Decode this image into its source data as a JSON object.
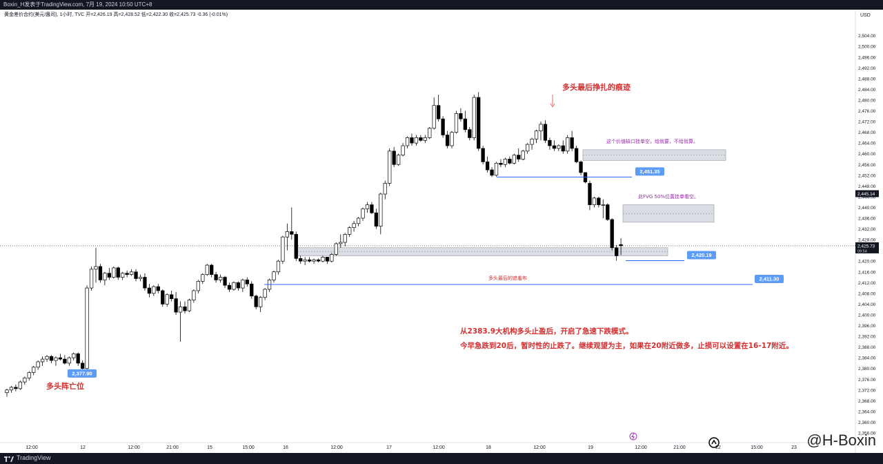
{
  "header": {
    "publish_line": "Boxin_H发表于TradingView.com,  7月 19, 2024 10:50 UTC+8",
    "symbol_line": "黄金差价合约(美元/盎司), 1小时, TVC  开=2,426.19  高=2,428.52  低=2,422.30  收=2,425.73  -0.36 (-0.01%)"
  },
  "footer": {
    "brand": "TradingView"
  },
  "watermark": "@H-Boxin",
  "colors": {
    "up": "#ffffff",
    "down": "#000000",
    "label_blue": "#5b9cf6",
    "zone_fill": "#d1d4dc",
    "annotation_red": "#d32f2f",
    "annotation_purple": "#9c27b0",
    "line_blue": "#2962ff"
  },
  "chart_data": {
    "type": "candlestick",
    "currency": "USD",
    "ylim": [
      2356.0,
      2507.0
    ],
    "y_ticks": [
      "2,356.00",
      "2,360.00",
      "2,364.00",
      "2,368.00",
      "2,372.00",
      "2,376.00",
      "2,380.00",
      "2,384.00",
      "2,388.00",
      "2,392.00",
      "2,396.00",
      "2,400.00",
      "2,404.00",
      "2,408.00",
      "2,412.00",
      "2,416.00",
      "2,420.00",
      "2,424.00",
      "2,428.00",
      "2,432.00",
      "2,436.00",
      "2,440.00",
      "2,444.00",
      "2,448.00",
      "2,452.00",
      "2,456.00",
      "2,460.00",
      "2,464.00",
      "2,468.00",
      "2,472.00",
      "2,476.00",
      "2,480.00",
      "2,484.00",
      "2,488.00",
      "2,492.00",
      "2,496.00",
      "2,500.00",
      "2,504.00"
    ],
    "x_ticks": [
      "12:00",
      "12",
      "12:00",
      "21:00",
      "15",
      "15:00",
      "16",
      "12:00",
      "17",
      "12:00",
      "18",
      "12:00",
      "19",
      "12:00",
      "21:00",
      "22",
      "15:00",
      "23"
    ],
    "last_price": {
      "value": 2425.73,
      "label": "2,425.73",
      "countdown": "09:54"
    },
    "cursor_price": {
      "value": 2445.14,
      "label": "2,445.14"
    },
    "candles": [
      [
        2371.0,
        2372.5,
        2369.5,
        2372.0
      ],
      [
        2372.0,
        2373.5,
        2371.0,
        2373.0
      ],
      [
        2373.0,
        2374.0,
        2371.5,
        2372.5
      ],
      [
        2372.5,
        2375.5,
        2372.0,
        2375.0
      ],
      [
        2375.0,
        2377.0,
        2374.0,
        2376.5
      ],
      [
        2376.5,
        2379.0,
        2375.5,
        2378.5
      ],
      [
        2378.5,
        2381.0,
        2377.5,
        2380.5
      ],
      [
        2380.5,
        2383.0,
        2379.5,
        2382.5
      ],
      [
        2382.5,
        2384.5,
        2381.0,
        2383.5
      ],
      [
        2383.5,
        2385.0,
        2382.5,
        2384.5
      ],
      [
        2384.5,
        2385.0,
        2382.0,
        2383.0
      ],
      [
        2383.0,
        2384.5,
        2381.0,
        2384.0
      ],
      [
        2384.0,
        2385.5,
        2383.0,
        2383.5
      ],
      [
        2383.5,
        2385.0,
        2381.5,
        2382.0
      ],
      [
        2382.0,
        2384.5,
        2381.0,
        2384.0
      ],
      [
        2384.0,
        2386.0,
        2383.0,
        2385.5
      ],
      [
        2385.5,
        2386.0,
        2381.0,
        2382.0
      ],
      [
        2382.0,
        2383.0,
        2377.9,
        2380.0
      ],
      [
        2380.0,
        2411.0,
        2378.0,
        2410.0
      ],
      [
        2410.0,
        2418.0,
        2409.0,
        2417.0
      ],
      [
        2417.0,
        2425.0,
        2412.0,
        2418.0
      ],
      [
        2418.0,
        2419.0,
        2412.0,
        2413.0
      ],
      [
        2413.0,
        2416.0,
        2411.0,
        2415.5
      ],
      [
        2415.5,
        2417.5,
        2413.0,
        2414.0
      ],
      [
        2414.0,
        2418.0,
        2413.5,
        2417.5
      ],
      [
        2417.5,
        2418.0,
        2413.0,
        2414.0
      ],
      [
        2414.0,
        2416.0,
        2413.0,
        2415.5
      ],
      [
        2415.5,
        2416.5,
        2414.0,
        2415.0
      ],
      [
        2415.0,
        2417.0,
        2414.5,
        2416.0
      ],
      [
        2416.0,
        2417.0,
        2412.5,
        2413.5
      ],
      [
        2413.5,
        2415.0,
        2412.5,
        2414.0
      ],
      [
        2414.0,
        2415.5,
        2409.0,
        2410.0
      ],
      [
        2410.0,
        2411.5,
        2406.5,
        2408.0
      ],
      [
        2408.0,
        2411.0,
        2407.0,
        2410.5
      ],
      [
        2410.5,
        2411.5,
        2408.0,
        2409.0
      ],
      [
        2409.0,
        2409.5,
        2403.0,
        2404.0
      ],
      [
        2404.0,
        2408.0,
        2403.0,
        2407.5
      ],
      [
        2407.5,
        2409.0,
        2405.0,
        2406.0
      ],
      [
        2406.0,
        2408.5,
        2400.0,
        2401.0
      ],
      [
        2401.0,
        2405.0,
        2390.0,
        2403.0
      ],
      [
        2403.0,
        2405.0,
        2400.5,
        2401.5
      ],
      [
        2401.5,
        2406.0,
        2401.0,
        2405.5
      ],
      [
        2405.5,
        2409.5,
        2404.5,
        2409.0
      ],
      [
        2409.0,
        2413.0,
        2408.0,
        2412.5
      ],
      [
        2412.5,
        2415.5,
        2411.5,
        2415.0
      ],
      [
        2415.0,
        2419.0,
        2414.5,
        2418.5
      ],
      [
        2418.5,
        2419.0,
        2414.0,
        2415.0
      ],
      [
        2415.0,
        2416.0,
        2412.0,
        2413.0
      ],
      [
        2413.0,
        2415.0,
        2412.0,
        2414.0
      ],
      [
        2414.0,
        2414.5,
        2410.0,
        2411.0
      ],
      [
        2411.0,
        2412.0,
        2408.5,
        2409.5
      ],
      [
        2409.5,
        2412.5,
        2409.0,
        2412.0
      ],
      [
        2412.0,
        2412.5,
        2409.0,
        2410.0
      ],
      [
        2410.0,
        2413.5,
        2408.5,
        2413.0
      ],
      [
        2413.0,
        2414.0,
        2410.5,
        2411.5
      ],
      [
        2411.5,
        2412.5,
        2406.0,
        2407.0
      ],
      [
        2407.0,
        2407.5,
        2402.0,
        2403.0
      ],
      [
        2403.0,
        2407.0,
        2401.0,
        2406.5
      ],
      [
        2406.5,
        2410.0,
        2405.5,
        2409.5
      ],
      [
        2409.5,
        2413.5,
        2408.5,
        2413.0
      ],
      [
        2413.0,
        2416.5,
        2412.0,
        2416.0
      ],
      [
        2416.0,
        2420.5,
        2415.0,
        2420.0
      ],
      [
        2420.0,
        2429.5,
        2419.0,
        2429.0
      ],
      [
        2429.0,
        2434.0,
        2424.0,
        2431.0
      ],
      [
        2431.0,
        2440.0,
        2428.0,
        2430.0
      ],
      [
        2430.0,
        2431.0,
        2420.0,
        2421.0
      ],
      [
        2421.0,
        2422.0,
        2419.0,
        2420.0
      ],
      [
        2420.0,
        2421.5,
        2418.5,
        2420.5
      ],
      [
        2420.5,
        2421.5,
        2419.5,
        2420.0
      ],
      [
        2420.0,
        2421.0,
        2419.0,
        2420.5
      ],
      [
        2420.5,
        2421.0,
        2419.5,
        2420.0
      ],
      [
        2420.0,
        2422.0,
        2419.5,
        2421.5
      ],
      [
        2421.5,
        2421.5,
        2419.0,
        2420.0
      ],
      [
        2420.0,
        2423.0,
        2419.5,
        2422.5
      ],
      [
        2422.5,
        2427.0,
        2422.0,
        2426.5
      ],
      [
        2426.5,
        2430.0,
        2425.0,
        2427.0
      ],
      [
        2427.0,
        2430.5,
        2425.5,
        2430.0
      ],
      [
        2430.0,
        2433.0,
        2429.0,
        2432.5
      ],
      [
        2432.5,
        2435.0,
        2431.0,
        2434.0
      ],
      [
        2434.0,
        2436.5,
        2433.0,
        2436.0
      ],
      [
        2436.0,
        2440.0,
        2435.0,
        2439.5
      ],
      [
        2439.5,
        2442.0,
        2438.0,
        2441.0
      ],
      [
        2441.0,
        2442.0,
        2437.5,
        2438.0
      ],
      [
        2438.0,
        2439.5,
        2432.0,
        2433.0
      ],
      [
        2433.0,
        2445.5,
        2430.0,
        2445.0
      ],
      [
        2445.0,
        2450.0,
        2443.0,
        2449.0
      ],
      [
        2449.0,
        2462.0,
        2448.0,
        2461.0
      ],
      [
        2461.0,
        2462.5,
        2455.0,
        2456.0
      ],
      [
        2456.0,
        2460.0,
        2455.5,
        2459.5
      ],
      [
        2459.5,
        2464.0,
        2459.0,
        2463.0
      ],
      [
        2463.0,
        2466.5,
        2462.0,
        2466.0
      ],
      [
        2466.0,
        2467.5,
        2463.0,
        2464.0
      ],
      [
        2464.0,
        2467.0,
        2463.0,
        2466.0
      ],
      [
        2466.0,
        2467.0,
        2464.5,
        2465.0
      ],
      [
        2465.0,
        2467.0,
        2464.0,
        2466.0
      ],
      [
        2466.0,
        2470.0,
        2465.5,
        2469.5
      ],
      [
        2469.5,
        2481.0,
        2469.0,
        2478.0
      ],
      [
        2478.0,
        2482.0,
        2472.0,
        2473.0
      ],
      [
        2473.0,
        2474.0,
        2466.0,
        2467.0
      ],
      [
        2467.0,
        2468.5,
        2462.0,
        2463.0
      ],
      [
        2463.0,
        2468.5,
        2462.0,
        2468.0
      ],
      [
        2468.0,
        2476.0,
        2467.5,
        2475.0
      ],
      [
        2475.0,
        2477.0,
        2472.0,
        2473.0
      ],
      [
        2473.0,
        2476.0,
        2468.0,
        2469.0
      ],
      [
        2469.0,
        2470.0,
        2465.0,
        2466.0
      ],
      [
        2466.0,
        2482.0,
        2465.0,
        2481.0
      ],
      [
        2481.0,
        2483.0,
        2461.0,
        2462.0
      ],
      [
        2462.0,
        2463.0,
        2456.0,
        2457.0
      ],
      [
        2457.0,
        2459.0,
        2453.0,
        2454.0
      ],
      [
        2454.0,
        2455.0,
        2451.35,
        2452.0
      ],
      [
        2452.0,
        2457.0,
        2451.5,
        2456.5
      ],
      [
        2456.5,
        2458.0,
        2455.0,
        2456.0
      ],
      [
        2456.0,
        2458.5,
        2455.0,
        2458.0
      ],
      [
        2458.0,
        2459.0,
        2456.0,
        2456.5
      ],
      [
        2456.5,
        2460.0,
        2456.0,
        2459.5
      ],
      [
        2459.5,
        2462.0,
        2457.0,
        2458.0
      ],
      [
        2458.0,
        2461.5,
        2457.5,
        2461.0
      ],
      [
        2461.0,
        2464.0,
        2460.0,
        2463.5
      ],
      [
        2463.5,
        2466.0,
        2461.5,
        2465.5
      ],
      [
        2465.5,
        2469.0,
        2464.0,
        2468.5
      ],
      [
        2468.5,
        2472.0,
        2465.0,
        2471.0
      ],
      [
        2471.0,
        2472.5,
        2464.0,
        2465.0
      ],
      [
        2465.0,
        2466.0,
        2461.5,
        2463.0
      ],
      [
        2463.0,
        2465.0,
        2461.0,
        2462.0
      ],
      [
        2462.0,
        2463.5,
        2461.0,
        2463.0
      ],
      [
        2463.0,
        2465.0,
        2460.0,
        2461.0
      ],
      [
        2461.0,
        2467.0,
        2460.0,
        2466.0
      ],
      [
        2466.0,
        2468.5,
        2461.0,
        2462.0
      ],
      [
        2462.0,
        2463.0,
        2456.5,
        2457.0
      ],
      [
        2457.0,
        2457.5,
        2452.0,
        2453.0
      ],
      [
        2453.0,
        2453.0,
        2449.0,
        2449.5
      ],
      [
        2449.0,
        2450.0,
        2439.0,
        2441.0
      ],
      [
        2441.0,
        2444.0,
        2440.0,
        2443.5
      ],
      [
        2443.5,
        2444.0,
        2440.0,
        2441.0
      ],
      [
        2441.0,
        2443.0,
        2436.0,
        2441.0
      ],
      [
        2441.0,
        2441.5,
        2435.0,
        2435.5
      ],
      [
        2435.5,
        2436.0,
        2424.0,
        2425.0
      ],
      [
        2425.0,
        2426.0,
        2420.19,
        2422.0
      ],
      [
        2426.19,
        2428.52,
        2422.3,
        2425.73
      ]
    ],
    "zones": [
      {
        "name": "upper-fvg",
        "top": 2461.5,
        "bottom": 2457.5
      },
      {
        "name": "middle-fvg",
        "top": 2441.0,
        "bottom": 2434.5
      },
      {
        "name": "lower-ob",
        "top": 2425.0,
        "bottom": 2422.0
      }
    ],
    "levels": [
      {
        "name": "level-2451",
        "value": 2451.35,
        "label": "2,451.35"
      },
      {
        "name": "level-2420",
        "value": 2420.19,
        "label": "2,420.19"
      },
      {
        "name": "level-2411",
        "value": 2411.3,
        "label": "2,411.30"
      },
      {
        "name": "level-2377",
        "value": 2377.9,
        "label": "2,377.90"
      }
    ],
    "annotations": {
      "bulls_last_struggle": "多头最后挣扎的痕迹",
      "upper_zone_note": "这个价值缺口挂单空，给就要，不给就算。",
      "middle_zone_note": "此FVG 50%位置挂单看空。",
      "bulls_last_defense": "多头最后的遮羞布",
      "bulls_defeated": "多头阵亡位",
      "main_text_line1": "从2383.9大机构多头止盈后，开启了急速下跌模式。",
      "main_text_line2": "今早急跌到20后，暂时性的止跌了。继续观望为主，如果在20附近做多，止损可以设置在16-17附近。"
    }
  }
}
